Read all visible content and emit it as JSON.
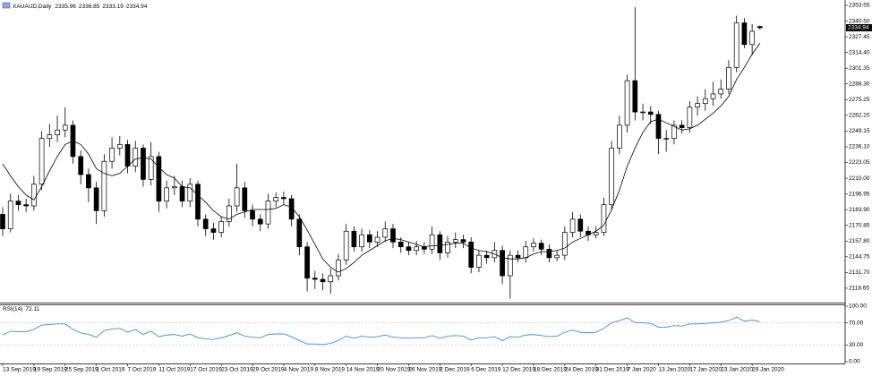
{
  "chart_data": {
    "type": "candlestick",
    "title": "XAUAUD,Daily",
    "categories": [
      "13 Sep 2019",
      null,
      null,
      null,
      "19 Sep 2019",
      null,
      null,
      null,
      "25 Sep 2019",
      null,
      null,
      null,
      "1 Oct 2019",
      null,
      null,
      null,
      "7 Oct 2019",
      null,
      null,
      null,
      "11 Oct 2019",
      null,
      null,
      null,
      "17 Oct 2019",
      null,
      null,
      null,
      "23 Oct 2019",
      null,
      null,
      null,
      "29 Oct 2019",
      null,
      null,
      null,
      "4 Nov 2019",
      null,
      null,
      null,
      "8 Nov 2019",
      null,
      null,
      null,
      "14 Nov 2019",
      null,
      null,
      null,
      "20 Nov 2019",
      null,
      null,
      null,
      "26 Nov 2019",
      null,
      null,
      null,
      "2 Dec 2019",
      null,
      null,
      null,
      "6 Dec 2019",
      null,
      null,
      null,
      "12 Dec 2019",
      null,
      null,
      null,
      "18 Dec 2019",
      null,
      null,
      null,
      "24 Dec 2019",
      null,
      null,
      null,
      "31 Dec 2019",
      null,
      null,
      null,
      "7 Jan 2020",
      null,
      null,
      null,
      "13 Jan 2020",
      null,
      null,
      null,
      "17 Jan 2020",
      null,
      null,
      null,
      "23 Jan 2020",
      null,
      null,
      null,
      "29 Jan 2020",
      null
    ],
    "open": [
      2180,
      2168,
      2191,
      2188,
      2187,
      2205,
      2243,
      2246,
      2250,
      2254,
      2228,
      2213,
      2202,
      2183,
      2224,
      2235,
      2238,
      2220,
      2235,
      2209,
      2228,
      2191,
      2202,
      2203,
      2191,
      2205,
      2176,
      2168,
      2165,
      2174,
      2187,
      2202,
      2183,
      2176,
      2172,
      2191,
      2194,
      2193,
      2176,
      2153,
      2127,
      2126,
      2124,
      2129,
      2142,
      2166,
      2153,
      2163,
      2157,
      2161,
      2168,
      2157,
      2153,
      2150,
      2153,
      2151,
      2163,
      2148,
      2157,
      2159,
      2157,
      2136,
      2146,
      2144,
      2150,
      2129,
      2146,
      2144,
      2153,
      2156,
      2151,
      2144,
      2146,
      2165,
      2176,
      2166,
      2163,
      2165,
      2188,
      2235,
      2254,
      2291,
      2265,
      2265,
      2263,
      2243,
      2243,
      2254,
      2252,
      2269,
      2272,
      2276,
      2280,
      2284,
      2302,
      2339,
      2321,
      2335.96
    ],
    "high": [
      2186,
      2197,
      2196,
      2193,
      2212,
      2249,
      2255,
      2262,
      2269,
      2258,
      2233,
      2218,
      2207,
      2230,
      2244,
      2245,
      2242,
      2241,
      2238,
      2240,
      2232,
      2208,
      2212,
      2208,
      2210,
      2208,
      2180,
      2173,
      2178,
      2193,
      2222,
      2207,
      2188,
      2180,
      2197,
      2198,
      2199,
      2196,
      2180,
      2157,
      2133,
      2131,
      2135,
      2147,
      2172,
      2170,
      2168,
      2167,
      2166,
      2174,
      2172,
      2161,
      2157,
      2158,
      2157,
      2170,
      2166,
      2162,
      2165,
      2163,
      2161,
      2150,
      2150,
      2157,
      2154,
      2150,
      2150,
      2158,
      2160,
      2159,
      2155,
      2150,
      2170,
      2182,
      2180,
      2170,
      2170,
      2194,
      2241,
      2262,
      2296,
      2352,
      2272,
      2270,
      2266,
      2250,
      2258,
      2258,
      2274,
      2278,
      2284,
      2290,
      2292,
      2308,
      2345,
      2343,
      2338,
      2336.85
    ],
    "low": [
      2162,
      2165,
      2183,
      2182,
      2183,
      2200,
      2236,
      2240,
      2244,
      2222,
      2205,
      2190,
      2172,
      2178,
      2218,
      2229,
      2214,
      2215,
      2203,
      2204,
      2182,
      2185,
      2196,
      2186,
      2186,
      2170,
      2162,
      2159,
      2161,
      2170,
      2182,
      2177,
      2170,
      2166,
      2168,
      2186,
      2188,
      2170,
      2146,
      2116,
      2118,
      2117,
      2114,
      2125,
      2138,
      2149,
      2149,
      2152,
      2153,
      2157,
      2152,
      2148,
      2146,
      2146,
      2147,
      2147,
      2142,
      2144,
      2152,
      2152,
      2131,
      2132,
      2139,
      2140,
      2122,
      2110,
      2140,
      2140,
      2149,
      2146,
      2140,
      2141,
      2142,
      2161,
      2161,
      2158,
      2160,
      2162,
      2184,
      2230,
      2248,
      2258,
      2258,
      2255,
      2230,
      2232,
      2238,
      2247,
      2248,
      2262,
      2266,
      2270,
      2276,
      2280,
      2298,
      2318,
      2312,
      2333.19
    ],
    "close": [
      2168,
      2191,
      2188,
      2187,
      2205,
      2243,
      2246,
      2250,
      2254,
      2228,
      2213,
      2202,
      2183,
      2224,
      2235,
      2238,
      2220,
      2235,
      2209,
      2228,
      2191,
      2202,
      2203,
      2191,
      2205,
      2176,
      2168,
      2165,
      2174,
      2187,
      2202,
      2183,
      2176,
      2172,
      2191,
      2194,
      2193,
      2176,
      2153,
      2127,
      2126,
      2124,
      2129,
      2142,
      2166,
      2153,
      2163,
      2157,
      2161,
      2168,
      2157,
      2153,
      2150,
      2153,
      2151,
      2163,
      2148,
      2157,
      2159,
      2157,
      2136,
      2146,
      2144,
      2150,
      2129,
      2146,
      2144,
      2153,
      2156,
      2151,
      2144,
      2146,
      2165,
      2176,
      2166,
      2163,
      2165,
      2188,
      2235,
      2254,
      2291,
      2265,
      2265,
      2263,
      2243,
      2243,
      2254,
      2252,
      2269,
      2272,
      2276,
      2280,
      2284,
      2302,
      2339,
      2321,
      2332,
      2334.94
    ],
    "up_color": "#ffffff",
    "down_color": "#000000",
    "ma": {
      "color": "#000000",
      "values": [
        2222,
        2212,
        2203,
        2196,
        2192,
        2203,
        2216,
        2228,
        2238,
        2241,
        2238,
        2230,
        2218,
        2214,
        2212,
        2214,
        2220,
        2226,
        2227,
        2226,
        2219,
        2213,
        2210,
        2203,
        2202,
        2196,
        2190,
        2183,
        2178,
        2176,
        2180,
        2182,
        2184,
        2184,
        2184,
        2185,
        2188,
        2186,
        2178,
        2167,
        2155,
        2143,
        2136,
        2132,
        2135,
        2140,
        2146,
        2150,
        2154,
        2158,
        2160,
        2159,
        2157,
        2155,
        2153,
        2154,
        2154,
        2155,
        2156,
        2156,
        2152,
        2150,
        2149,
        2147,
        2144,
        2143,
        2143,
        2144,
        2147,
        2149,
        2149,
        2150,
        2152,
        2157,
        2160,
        2163,
        2166,
        2171,
        2184,
        2200,
        2220,
        2235,
        2248,
        2257,
        2259,
        2256,
        2253,
        2250,
        2251,
        2254,
        2259,
        2264,
        2270,
        2278,
        2292,
        2302,
        2313,
        2322
      ]
    },
    "ylim": [
      2106.7,
      2358.0
    ],
    "yticks": [
      2353.55,
      {
        "value": 2340.5,
        "label": "2340.50"
      },
      2327.45,
      {
        "value": 2314.4,
        "label": "2314.40"
      },
      2301.35,
      {
        "value": 2288.3,
        "label": "2288.30"
      },
      2275.25,
      {
        "value": 2262.2,
        "label": "2262.20"
      },
      2249.15,
      {
        "value": 2236.1,
        "label": "2236.10"
      },
      2223.05,
      {
        "value": 2210,
        "label": "2210.00"
      },
      2196.95,
      {
        "value": 2183.9,
        "label": "2183.90"
      },
      2170.85,
      {
        "value": 2157.8,
        "label": "2157.80"
      },
      2144.75,
      {
        "value": 2131.7,
        "label": "2131.70"
      },
      2118.65
    ],
    "rsi": {
      "title": "RSI(14)",
      "color": "#3a8ee6",
      "values": [
        48,
        55,
        54,
        54,
        58,
        66,
        67,
        68,
        68,
        58,
        52,
        49,
        44,
        56,
        59,
        60,
        53,
        58,
        49,
        55,
        45,
        48,
        49,
        46,
        50,
        43,
        41,
        40,
        43,
        47,
        52,
        46,
        44,
        43,
        49,
        50,
        50,
        45,
        38,
        32,
        32,
        31,
        33,
        38,
        46,
        42,
        46,
        44,
        45,
        48,
        44,
        43,
        42,
        43,
        43,
        47,
        42,
        46,
        47,
        46,
        39,
        43,
        43,
        45,
        38,
        45,
        44,
        48,
        49,
        47,
        45,
        46,
        53,
        57,
        53,
        52,
        53,
        60,
        70,
        74,
        79,
        70,
        70,
        69,
        62,
        62,
        65,
        64,
        68,
        68,
        69,
        70,
        71,
        74,
        80,
        73,
        75,
        72.11
      ],
      "ylim": [
        0,
        100
      ],
      "yticks": [
        {
          "value": 100,
          "label": "100.00"
        },
        {
          "value": 70,
          "label": "70.00"
        },
        {
          "value": 30,
          "label": "30.00"
        },
        {
          "value": 0,
          "label": "0.00"
        }
      ]
    }
  }
}
